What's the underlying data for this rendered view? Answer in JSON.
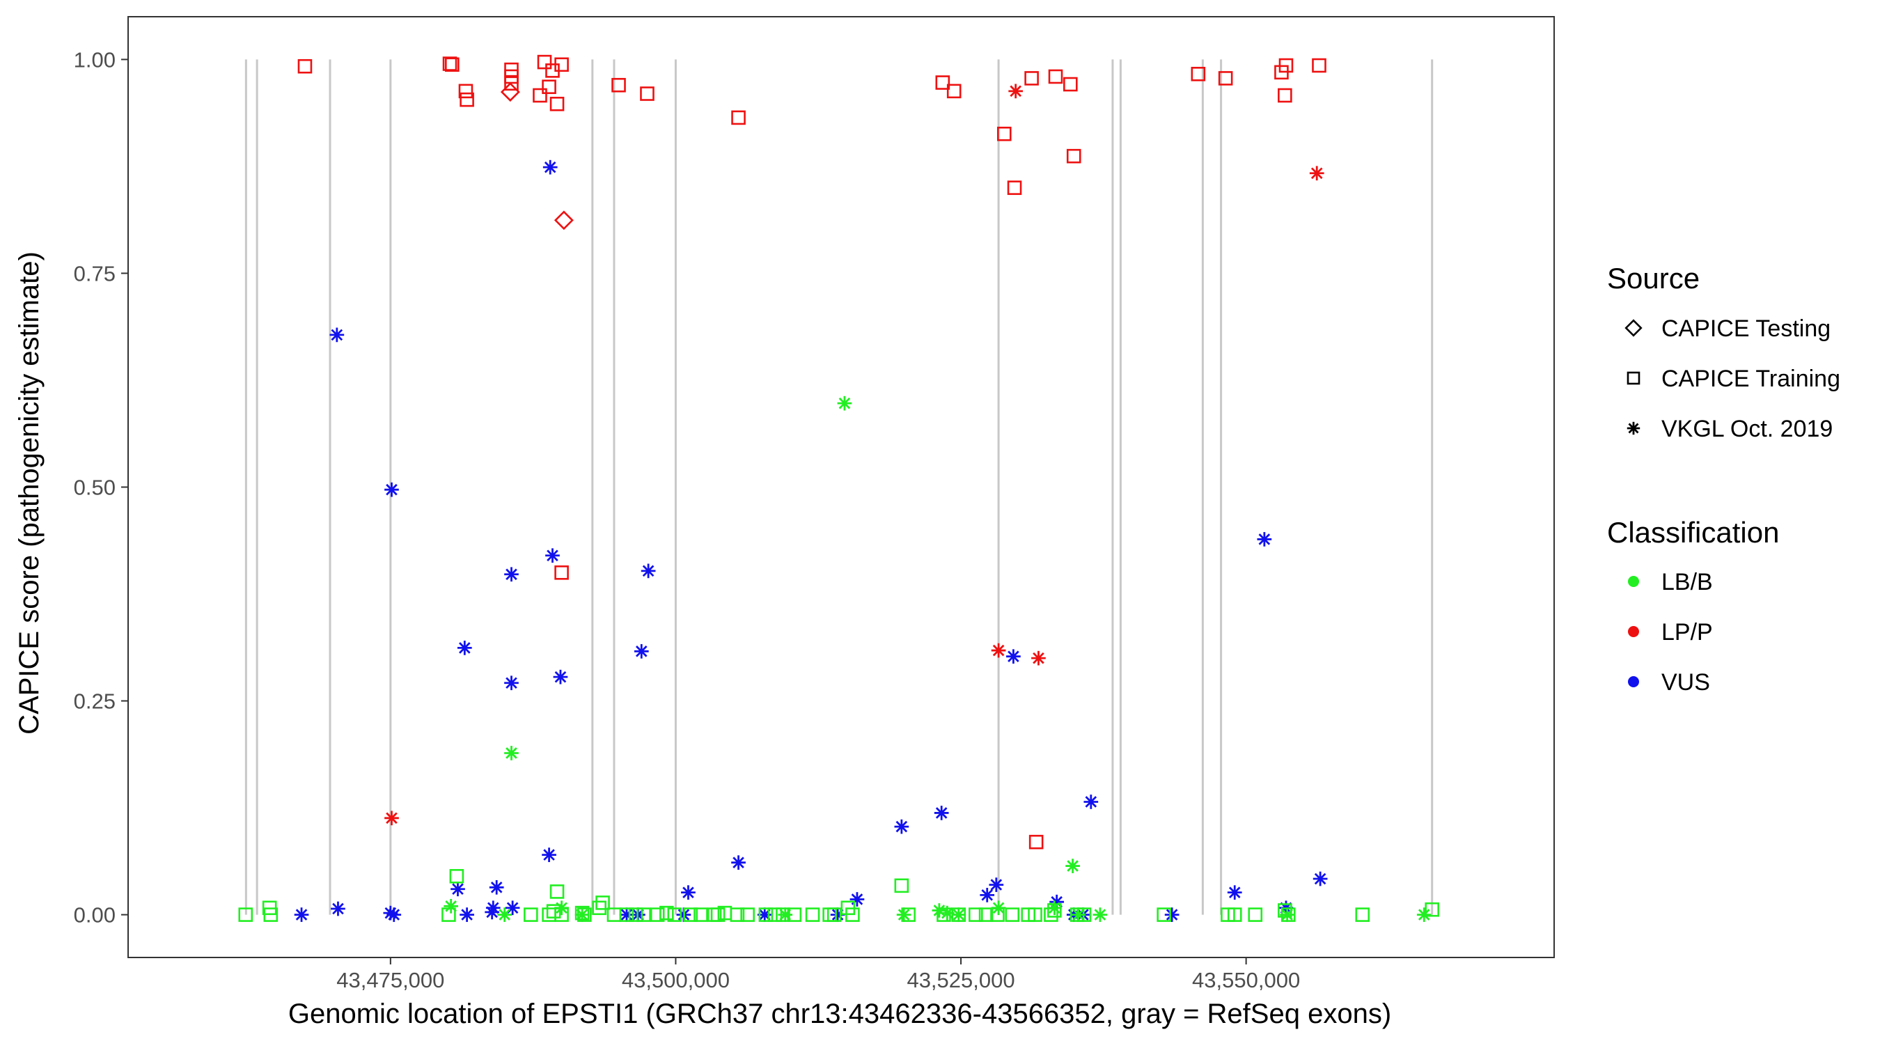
{
  "chart_data": {
    "type": "scatter",
    "title": "",
    "xlabel": "Genomic location of EPSTI1 (GRCh37 chr13:43462336-43566352, gray = RefSeq exons)",
    "ylabel": "CAPICE score (pathogenicity estimate)",
    "xlim": [
      43452000,
      43577000
    ],
    "ylim": [
      -0.05,
      1.05
    ],
    "x_ticks": [
      43475000,
      43500000,
      43525000,
      43550000
    ],
    "x_tick_labels": [
      "43,475,000",
      "43,500,000",
      "43,525,000",
      "43,550,000"
    ],
    "y_ticks": [
      0.0,
      0.25,
      0.5,
      0.75,
      1.0
    ],
    "y_tick_labels": [
      "0.00",
      "0.25",
      "0.50",
      "0.75",
      "1.00"
    ],
    "grid": false,
    "exons": [
      43462336,
      43463300,
      43469700,
      43475000,
      43492700,
      43494600,
      43500000,
      43528300,
      43538300,
      43539000,
      43546200,
      43547800,
      43566300
    ],
    "legend": {
      "placement": "right",
      "source_title": "Source",
      "source_entries": [
        {
          "label": "CAPICE Testing",
          "shape": "diamond"
        },
        {
          "label": "CAPICE Training",
          "shape": "square"
        },
        {
          "label": "VKGL Oct. 2019",
          "shape": "asterisk"
        }
      ],
      "class_title": "Classification",
      "class_entries": [
        {
          "label": "LB/B",
          "color": "#22ee22"
        },
        {
          "label": "LP/P",
          "color": "#ee1111"
        },
        {
          "label": "VUS",
          "color": "#1111ee"
        }
      ]
    },
    "colors": {
      "LB/B": "#22ee22",
      "LP/P": "#ee1111",
      "VUS": "#1111ee",
      "exon": "#c8c8c8"
    },
    "series": [
      {
        "name": "CAPICE Training LP/P",
        "shape": "square",
        "class": "LP/P",
        "points": [
          [
            43467500,
            0.992
          ],
          [
            43480200,
            0.995
          ],
          [
            43480400,
            0.994
          ],
          [
            43481600,
            0.963
          ],
          [
            43481700,
            0.953
          ],
          [
            43485600,
            0.988
          ],
          [
            43485600,
            0.98
          ],
          [
            43485600,
            0.972
          ],
          [
            43488100,
            0.958
          ],
          [
            43488500,
            0.997
          ],
          [
            43488900,
            0.968
          ],
          [
            43489200,
            0.987
          ],
          [
            43489600,
            0.948
          ],
          [
            43490000,
            0.994
          ],
          [
            43490000,
            0.4
          ],
          [
            43495000,
            0.97
          ],
          [
            43497500,
            0.96
          ],
          [
            43505500,
            0.932
          ],
          [
            43523400,
            0.973
          ],
          [
            43524400,
            0.963
          ],
          [
            43528800,
            0.913
          ],
          [
            43529700,
            0.85
          ],
          [
            43531200,
            0.978
          ],
          [
            43533300,
            0.98
          ],
          [
            43534600,
            0.971
          ],
          [
            43534900,
            0.887
          ],
          [
            43531600,
            0.085
          ],
          [
            43545800,
            0.983
          ],
          [
            43548200,
            0.978
          ],
          [
            43553100,
            0.985
          ],
          [
            43553500,
            0.993
          ],
          [
            43553400,
            0.958
          ],
          [
            43556400,
            0.993
          ]
        ]
      },
      {
        "name": "CAPICE Testing LP/P",
        "shape": "diamond",
        "class": "LP/P",
        "points": [
          [
            43485500,
            0.962
          ],
          [
            43490200,
            0.812
          ]
        ]
      },
      {
        "name": "VKGL LP/P",
        "shape": "asterisk",
        "class": "LP/P",
        "points": [
          [
            43475100,
            0.113
          ],
          [
            43528300,
            0.309
          ],
          [
            43529800,
            0.963
          ],
          [
            43531800,
            0.3
          ],
          [
            43556200,
            0.867
          ]
        ]
      },
      {
        "name": "VKGL VUS",
        "shape": "asterisk",
        "class": "VUS",
        "points": [
          [
            43470300,
            0.678
          ],
          [
            43475100,
            0.497
          ],
          [
            43489000,
            0.874
          ],
          [
            43489200,
            0.42
          ],
          [
            43485600,
            0.398
          ],
          [
            43481500,
            0.312
          ],
          [
            43485600,
            0.271
          ],
          [
            43489900,
            0.278
          ],
          [
            43488900,
            0.07
          ],
          [
            43497600,
            0.402
          ],
          [
            43497000,
            0.308
          ],
          [
            43505500,
            0.061
          ],
          [
            43501100,
            0.026
          ],
          [
            43523300,
            0.119
          ],
          [
            43519800,
            0.103
          ],
          [
            43515900,
            0.018
          ],
          [
            43529600,
            0.302
          ],
          [
            43536400,
            0.132
          ],
          [
            43528100,
            0.035
          ],
          [
            43527300,
            0.023
          ],
          [
            43533400,
            0.015
          ],
          [
            43551600,
            0.439
          ],
          [
            43549000,
            0.026
          ],
          [
            43556500,
            0.042
          ],
          [
            43553500,
            0.008
          ],
          [
            43467200,
            0.0
          ],
          [
            43470400,
            0.007
          ],
          [
            43475000,
            0.002
          ],
          [
            43475300,
            0.0
          ],
          [
            43480900,
            0.03
          ],
          [
            43481700,
            0.0
          ],
          [
            43484000,
            0.008
          ],
          [
            43484300,
            0.032
          ],
          [
            43485700,
            0.008
          ],
          [
            43483900,
            0.003
          ],
          [
            43495700,
            0.0
          ],
          [
            43496700,
            0.0
          ],
          [
            43500700,
            0.0
          ],
          [
            43507800,
            0.0
          ],
          [
            43514200,
            0.0
          ],
          [
            43534900,
            0.0
          ],
          [
            43535700,
            0.0
          ],
          [
            43543500,
            0.0
          ]
        ]
      },
      {
        "name": "VKGL LB/B",
        "shape": "asterisk",
        "class": "LB/B",
        "points": [
          [
            43514800,
            0.598
          ],
          [
            43485600,
            0.189
          ],
          [
            43534800,
            0.057
          ],
          [
            43480300,
            0.01
          ],
          [
            43485000,
            0.0
          ],
          [
            43490000,
            0.008
          ],
          [
            43491800,
            0.0
          ],
          [
            43509600,
            0.0
          ],
          [
            43520000,
            0.0
          ],
          [
            43523100,
            0.005
          ],
          [
            43523800,
            0.002
          ],
          [
            43524800,
            0.0
          ],
          [
            43528300,
            0.008
          ],
          [
            43533200,
            0.008
          ],
          [
            43535300,
            0.0
          ],
          [
            43537200,
            0.0
          ],
          [
            43565600,
            0.0
          ],
          [
            43553600,
            0.0
          ]
        ]
      },
      {
        "name": "CAPICE Training LB/B",
        "shape": "square",
        "class": "LB/B",
        "points": [
          [
            43462300,
            0.0
          ],
          [
            43464400,
            0.008
          ],
          [
            43464500,
            0.0
          ],
          [
            43480100,
            0.0
          ],
          [
            43480800,
            0.045
          ],
          [
            43487300,
            0.0
          ],
          [
            43488900,
            0.0
          ],
          [
            43489600,
            0.027
          ],
          [
            43490000,
            0.0
          ],
          [
            43489300,
            0.004
          ],
          [
            43491800,
            0.002
          ],
          [
            43492000,
            0.0
          ],
          [
            43493300,
            0.008
          ],
          [
            43493600,
            0.014
          ],
          [
            43494600,
            0.0
          ],
          [
            43495700,
            0.0
          ],
          [
            43496500,
            0.0
          ],
          [
            43497200,
            0.0
          ],
          [
            43498400,
            0.0
          ],
          [
            43499200,
            0.002
          ],
          [
            43499900,
            0.0
          ],
          [
            43501300,
            0.0
          ],
          [
            43502200,
            0.0
          ],
          [
            43503400,
            0.0
          ],
          [
            43503700,
            0.0
          ],
          [
            43504300,
            0.002
          ],
          [
            43505400,
            0.0
          ],
          [
            43506300,
            0.0
          ],
          [
            43507900,
            0.0
          ],
          [
            43508700,
            0.0
          ],
          [
            43509400,
            0.0
          ],
          [
            43510400,
            0.0
          ],
          [
            43512000,
            0.0
          ],
          [
            43513500,
            0.0
          ],
          [
            43513900,
            0.0
          ],
          [
            43515100,
            0.008
          ],
          [
            43515500,
            0.0
          ],
          [
            43519800,
            0.034
          ],
          [
            43520400,
            0.0
          ],
          [
            43523500,
            0.0
          ],
          [
            43524800,
            0.0
          ],
          [
            43526300,
            0.0
          ],
          [
            43527200,
            0.0
          ],
          [
            43528200,
            0.0
          ],
          [
            43529500,
            0.0
          ],
          [
            43530900,
            0.0
          ],
          [
            43531500,
            0.0
          ],
          [
            43532900,
            0.0
          ],
          [
            43533200,
            0.005
          ],
          [
            43535200,
            0.0
          ],
          [
            43535800,
            0.0
          ],
          [
            43542800,
            0.0
          ],
          [
            43548400,
            0.0
          ],
          [
            43549000,
            0.0
          ],
          [
            43550800,
            0.0
          ],
          [
            43553400,
            0.005
          ],
          [
            43553700,
            0.0
          ],
          [
            43560200,
            0.0
          ],
          [
            43566300,
            0.006
          ]
        ]
      }
    ]
  }
}
